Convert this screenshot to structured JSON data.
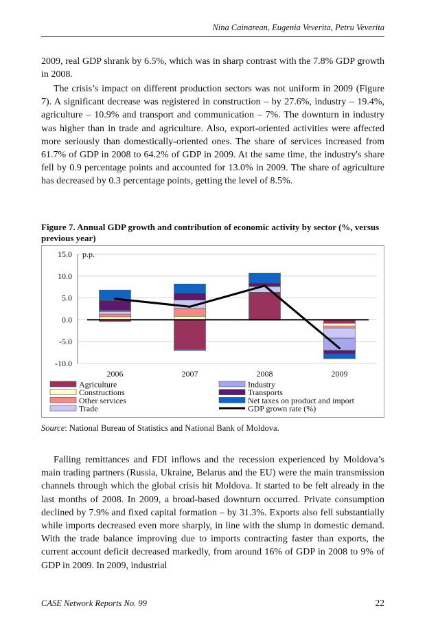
{
  "header": {
    "authors": "Nina Cainarean, Eugenia Veverita, Petru Veverita"
  },
  "paragraphs": {
    "p1": "2009, real GDP shrank by 6.5%, which was in sharp contrast with the 7.8% GDP growth in 2008.",
    "p2": "The crisis’s impact on different production sectors was not uniform in 2009 (Figure 7). A significant decrease was registered in construction – by 27.6%, industry – 19.4%, agriculture – 10.9% and transport and communication – 7%. The downturn in industry was higher than in trade and agriculture. Also, export-oriented activities were affected more seriously than domestically-oriented ones. The share of services increased from 61.7% of GDP in 2008 to 64.2% of GDP in 2009. At the same time, the industry's share fell by 0.9 percentage points and accounted for 13.0% in 2009. The share of agriculture has decreased by 0.3 percentage points, getting the level of 8.5%.",
    "p3": "Falling remittances and FDI inflows and the recession experienced by Moldova’s main trading partners (Russia, Ukraine, Belarus and the EU) were the main transmission channels through which the global crisis hit Moldova. It started to be felt already in the last months of 2008. In 2009, a broad-based downturn occurred. Private consumption declined by 7.9% and fixed capital formation – by 31.3%. Exports also fell substantially while imports decreased even more sharply, in line with the slump in domestic demand. With the trade balance improving due to imports contracting faster than exports, the current account deficit decreased markedly, from around 16% of GDP in 2008 to 9% of GDP in 2009. In 2009, industrial"
  },
  "figure": {
    "caption": "Figure 7.  Annual GDP growth and contribution of economic activity by sector (%, versus previous year)"
  },
  "source": {
    "label": "Source",
    "text": ": National Bureau of Statistics and National Bank of Moldova."
  },
  "footer": {
    "series": "CASE Network Reports No. 99",
    "page": "22"
  },
  "chart_data": {
    "type": "bar",
    "stacked": true,
    "unit_label": "p.p.",
    "categories": [
      "2006",
      "2007",
      "2008",
      "2009"
    ],
    "ylim": [
      -10,
      15
    ],
    "yticks": [
      "15.0",
      "10.0",
      "5.0",
      "0.0",
      "-5.0",
      "-10.0"
    ],
    "ytick_values": [
      15,
      10,
      5,
      0,
      -5,
      -10
    ],
    "grid": true,
    "legend_position": "bottom",
    "series": [
      {
        "name": "Agriculture",
        "color": "#99335e",
        "values": [
          -0.4,
          -6.8,
          6.2,
          -0.8
        ]
      },
      {
        "name": "Constructions",
        "color": "#fdfcd4",
        "values": [
          0.7,
          0.8,
          0.1,
          -0.6
        ]
      },
      {
        "name": "Other services",
        "color": "#f68a83",
        "values": [
          0.6,
          1.8,
          -0.1,
          -0.5
        ]
      },
      {
        "name": "Trade",
        "color": "#c9c8f5",
        "values": [
          0.6,
          1.9,
          1.2,
          -2.3
        ]
      },
      {
        "name": "Industry",
        "color": "#a6a6ee",
        "values": [
          0.2,
          -0.3,
          0.2,
          -2.8
        ]
      },
      {
        "name": "Transports",
        "color": "#5c1a6e",
        "values": [
          2.3,
          1.6,
          0.7,
          -0.8
        ]
      },
      {
        "name": "Net taxes on product and import",
        "color": "#1163c4",
        "values": [
          2.4,
          2.1,
          2.3,
          -1.1
        ]
      }
    ],
    "line": {
      "name": "GDP grown rate (%)",
      "color": "#000000",
      "values": [
        4.8,
        3.0,
        7.8,
        -6.5
      ]
    },
    "legend_order": [
      "Agriculture",
      "Industry",
      "Constructions",
      "Transports",
      "Other services",
      "Net taxes on product and import",
      "Trade",
      "GDP grown rate (%)"
    ]
  }
}
